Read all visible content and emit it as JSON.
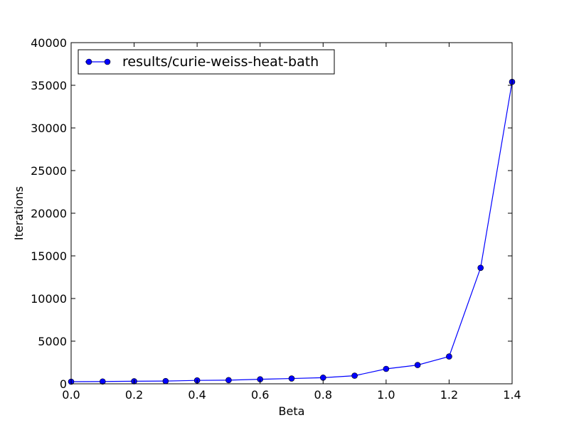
{
  "chart_data": {
    "type": "line",
    "title": "",
    "xlabel": "Beta",
    "ylabel": "Iterations",
    "xlim": [
      0.0,
      1.4
    ],
    "ylim": [
      0,
      40000
    ],
    "xticks": [
      0.0,
      0.2,
      0.4,
      0.6,
      0.8,
      1.0,
      1.2,
      1.4
    ],
    "xtick_labels": [
      "0.0",
      "0.2",
      "0.4",
      "0.6",
      "0.8",
      "1.0",
      "1.2",
      "1.4"
    ],
    "yticks": [
      0,
      5000,
      10000,
      15000,
      20000,
      25000,
      30000,
      35000,
      40000
    ],
    "ytick_labels": [
      "0",
      "5000",
      "10000",
      "15000",
      "20000",
      "25000",
      "30000",
      "35000",
      "40000"
    ],
    "grid": false,
    "legend_position": "top-left",
    "series": [
      {
        "name": "results/curie-weiss-heat-bath",
        "color": "#0000ff",
        "marker": "circle",
        "x": [
          0.0,
          0.1,
          0.2,
          0.3,
          0.4,
          0.5,
          0.6,
          0.7,
          0.8,
          0.9,
          1.0,
          1.1,
          1.2,
          1.3,
          1.4
        ],
        "y": [
          250,
          270,
          300,
          320,
          400,
          430,
          530,
          620,
          720,
          950,
          1750,
          2200,
          3200,
          13600,
          35400
        ]
      }
    ]
  }
}
